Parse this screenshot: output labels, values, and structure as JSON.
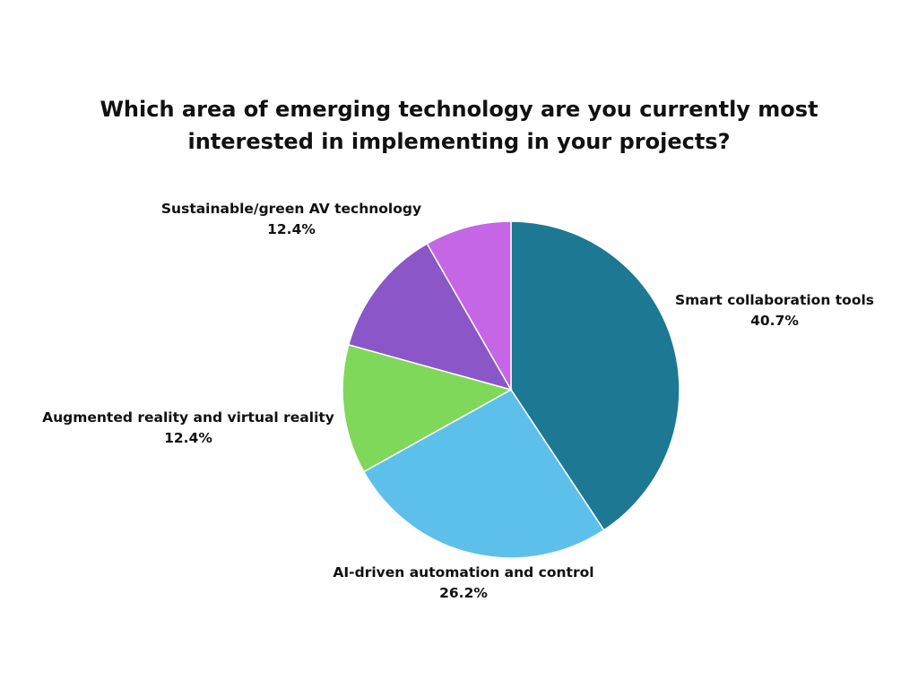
{
  "chart_data": {
    "type": "pie",
    "title_lines": [
      "Which area of emerging technology are you currently most",
      "interested in implementing in your projects?"
    ],
    "slices": [
      {
        "label": "Smart collaboration tools",
        "value": 40.7,
        "value_label": "40.7%",
        "color": "#1c7893"
      },
      {
        "label": "AI-driven automation and control",
        "value": 26.2,
        "value_label": "26.2%",
        "color": "#5dc0ea"
      },
      {
        "label": "Augmented reality and virtual reality",
        "value": 12.4,
        "value_label": "12.4%",
        "color": "#7fd85a"
      },
      {
        "label": "Sustainable/green AV technology",
        "value": 12.4,
        "value_label": "12.4%",
        "color": "#8a56c8"
      },
      {
        "label": "",
        "value": 8.3,
        "value_label": "",
        "color": "#c466e6"
      }
    ]
  }
}
